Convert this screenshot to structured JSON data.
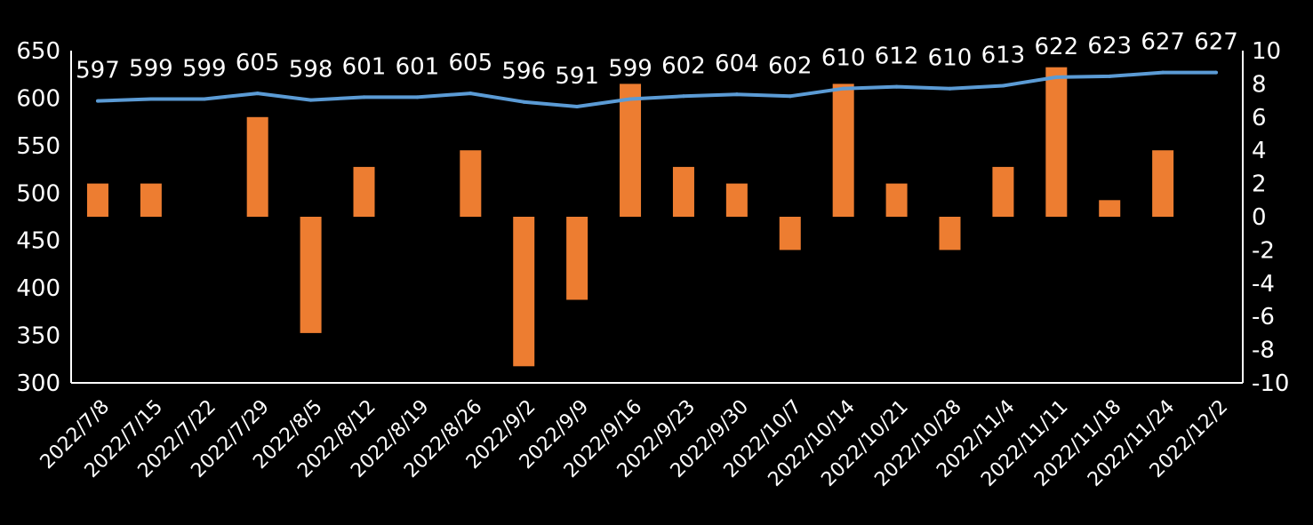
{
  "chart_data": {
    "type": "bar+line",
    "categories": [
      "2022/7/8",
      "2022/7/15",
      "2022/7/22",
      "2022/7/29",
      "2022/8/5",
      "2022/8/12",
      "2022/8/19",
      "2022/8/26",
      "2022/9/2",
      "2022/9/9",
      "2022/9/16",
      "2022/9/23",
      "2022/9/30",
      "2022/10/7",
      "2022/10/14",
      "2022/10/21",
      "2022/10/28",
      "2022/11/4",
      "2022/11/11",
      "2022/11/18",
      "2022/11/24",
      "2022/12/2"
    ],
    "series": [
      {
        "name": "line",
        "type": "line",
        "axis": "left",
        "color": "#5b9bd5",
        "values": [
          597,
          599,
          599,
          605,
          598,
          601,
          601,
          605,
          596,
          591,
          599,
          602,
          604,
          602,
          610,
          612,
          610,
          613,
          622,
          623,
          627,
          627
        ]
      },
      {
        "name": "bar",
        "type": "bar",
        "axis": "right",
        "color": "#ed7d31",
        "values": [
          2,
          2,
          0,
          6,
          -7,
          3,
          0,
          4,
          -9,
          -5,
          8,
          3,
          2,
          -2,
          8,
          2,
          -2,
          3,
          9,
          1,
          4,
          0
        ]
      }
    ],
    "y_left": {
      "min": 300,
      "max": 650,
      "ticks": [
        "300",
        "350",
        "400",
        "450",
        "500",
        "550",
        "600",
        "650"
      ]
    },
    "y_right": {
      "min": -10,
      "max": 10,
      "ticks": [
        "-10",
        "-8",
        "-6",
        "-4",
        "-2",
        "0",
        "2",
        "4",
        "6",
        "8",
        "10"
      ]
    },
    "data_labels": [
      "597",
      "599",
      "599",
      "605",
      "598",
      "601",
      "601",
      "605",
      "596",
      "591",
      "599",
      "602",
      "604",
      "602",
      "610",
      "612",
      "610",
      "613",
      "622",
      "623",
      "627",
      "627"
    ],
    "background": "#000000",
    "axis_color": "#ffffff",
    "text_color": "#ffffff"
  }
}
